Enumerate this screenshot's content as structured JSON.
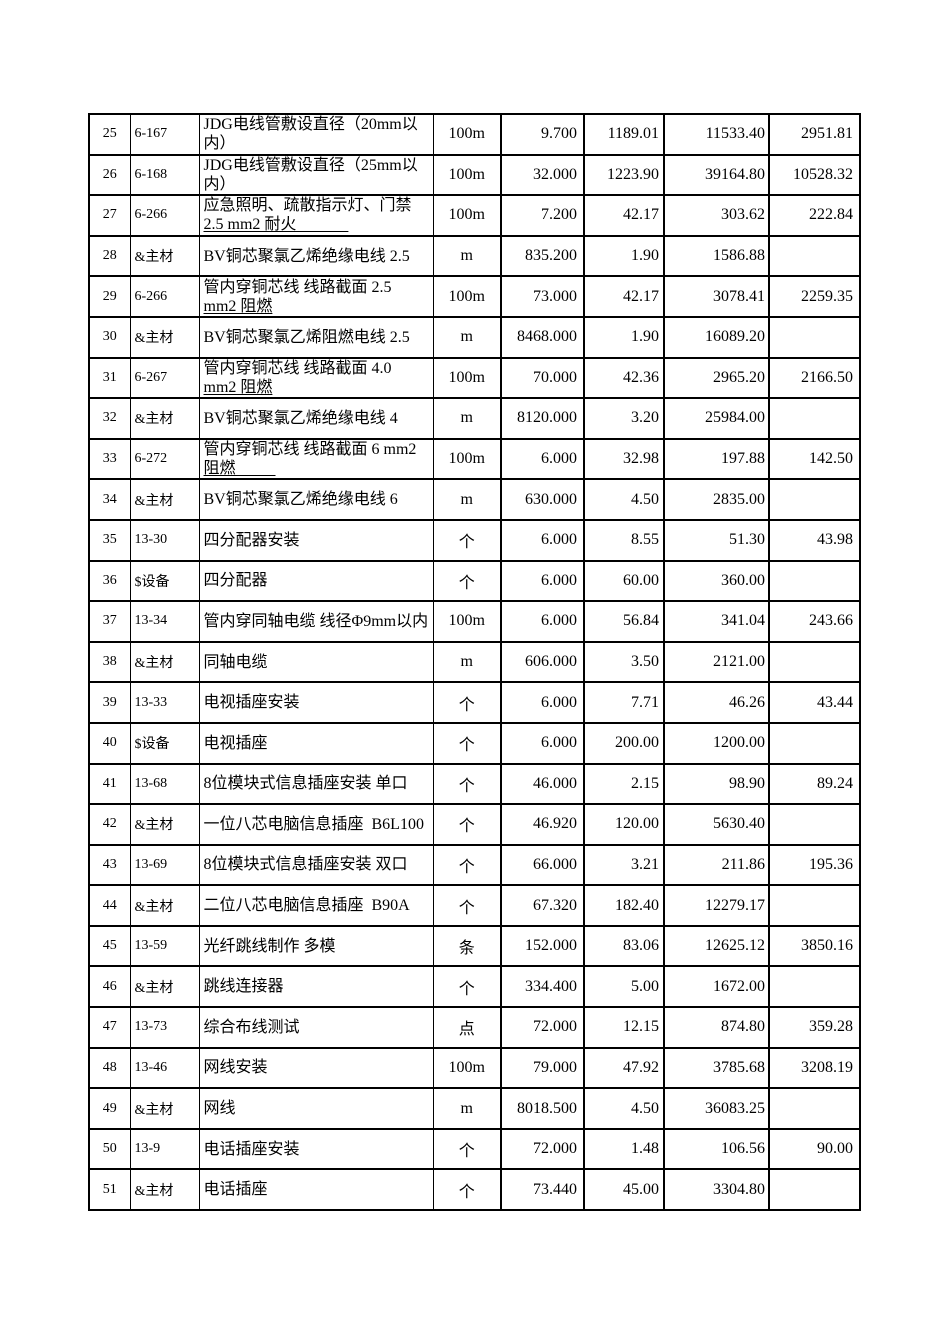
{
  "colors": {
    "background": "#ffffff",
    "border": "#000000",
    "text": "#000000"
  },
  "table": {
    "rows": [
      {
        "num": "25",
        "code": "6-167",
        "desc": [
          "JDG电线管敷设直径（20mm以",
          "内）"
        ],
        "u2": false,
        "unit": "100m",
        "qty": "9.700",
        "price": "1189.01",
        "amount": "11533.40",
        "extra": "2951.81"
      },
      {
        "num": "26",
        "code": "6-168",
        "desc": [
          "JDG电线管敷设直径（25mm以",
          "内）"
        ],
        "u2": false,
        "unit": "100m",
        "qty": "32.000",
        "price": "1223.90",
        "amount": "39164.80",
        "extra": "10528.32"
      },
      {
        "num": "27",
        "code": "6-266",
        "desc": [
          "应急照明、疏散指示灯、门禁",
          "2.5 mm2 耐火             "
        ],
        "u2": true,
        "unit": "100m",
        "qty": "7.200",
        "price": "42.17",
        "amount": "303.62",
        "extra": "222.84"
      },
      {
        "num": "28",
        "code": "&主材",
        "desc": [
          "BV铜芯聚氯乙烯绝缘电线 2.5"
        ],
        "u2": false,
        "unit": "m",
        "qty": "835.200",
        "price": "1.90",
        "amount": "1586.88",
        "extra": ""
      },
      {
        "num": "29",
        "code": "6-266",
        "desc": [
          "管内穿铜芯线 线路截面 2.5",
          "mm2 阻燃"
        ],
        "u2": true,
        "unit": "100m",
        "qty": "73.000",
        "price": "42.17",
        "amount": "3078.41",
        "extra": "2259.35"
      },
      {
        "num": "30",
        "code": "&主材",
        "desc": [
          "BV铜芯聚氯乙烯阻燃电线 2.5"
        ],
        "u2": false,
        "unit": "m",
        "qty": "8468.000",
        "price": "1.90",
        "amount": "16089.20",
        "extra": ""
      },
      {
        "num": "31",
        "code": "6-267",
        "desc": [
          "管内穿铜芯线 线路截面 4.0",
          "mm2 阻燃"
        ],
        "u2": true,
        "unit": "100m",
        "qty": "70.000",
        "price": "42.36",
        "amount": "2965.20",
        "extra": "2166.50"
      },
      {
        "num": "32",
        "code": "&主材",
        "desc": [
          "BV铜芯聚氯乙烯绝缘电线 4"
        ],
        "u2": false,
        "unit": "m",
        "qty": "8120.000",
        "price": "3.20",
        "amount": "25984.00",
        "extra": ""
      },
      {
        "num": "33",
        "code": "6-272",
        "desc": [
          "管内穿铜芯线 线路截面 6 mm2",
          "阻燃          "
        ],
        "u2": true,
        "unit": "100m",
        "qty": "6.000",
        "price": "32.98",
        "amount": "197.88",
        "extra": "142.50"
      },
      {
        "num": "34",
        "code": "&主材",
        "desc": [
          "BV铜芯聚氯乙烯绝缘电线 6"
        ],
        "u2": false,
        "unit": "m",
        "qty": "630.000",
        "price": "4.50",
        "amount": "2835.00",
        "extra": ""
      },
      {
        "num": "35",
        "code": "13-30",
        "desc": [
          "四分配器安装"
        ],
        "u2": false,
        "unit": "个",
        "qty": "6.000",
        "price": "8.55",
        "amount": "51.30",
        "extra": "43.98"
      },
      {
        "num": "36",
        "code": "$设备",
        "desc": [
          "四分配器"
        ],
        "u2": false,
        "unit": "个",
        "qty": "6.000",
        "price": "60.00",
        "amount": "360.00",
        "extra": ""
      },
      {
        "num": "37",
        "code": "13-34",
        "desc": [
          "管内穿同轴电缆 线径Φ9mm以内"
        ],
        "u2": false,
        "unit": "100m",
        "qty": "6.000",
        "price": "56.84",
        "amount": "341.04",
        "extra": "243.66"
      },
      {
        "num": "38",
        "code": "&主材",
        "desc": [
          "同轴电缆"
        ],
        "u2": false,
        "unit": "m",
        "qty": "606.000",
        "price": "3.50",
        "amount": "2121.00",
        "extra": ""
      },
      {
        "num": "39",
        "code": "13-33",
        "desc": [
          "电视插座安装"
        ],
        "u2": false,
        "unit": "个",
        "qty": "6.000",
        "price": "7.71",
        "amount": "46.26",
        "extra": "43.44"
      },
      {
        "num": "40",
        "code": "$设备",
        "desc": [
          "电视插座"
        ],
        "u2": false,
        "unit": "个",
        "qty": "6.000",
        "price": "200.00",
        "amount": "1200.00",
        "extra": ""
      },
      {
        "num": "41",
        "code": "13-68",
        "desc": [
          "8位模块式信息插座安装 单口"
        ],
        "u2": false,
        "unit": "个",
        "qty": "46.000",
        "price": "2.15",
        "amount": "98.90",
        "extra": "89.24"
      },
      {
        "num": "42",
        "code": "&主材",
        "desc": [
          "一位八芯电脑信息插座  B6L100"
        ],
        "u2": false,
        "unit": "个",
        "qty": "46.920",
        "price": "120.00",
        "amount": "5630.40",
        "extra": ""
      },
      {
        "num": "43",
        "code": "13-69",
        "desc": [
          "8位模块式信息插座安装 双口"
        ],
        "u2": false,
        "unit": "个",
        "qty": "66.000",
        "price": "3.21",
        "amount": "211.86",
        "extra": "195.36"
      },
      {
        "num": "44",
        "code": "&主材",
        "desc": [
          "二位八芯电脑信息插座  B90A"
        ],
        "u2": false,
        "unit": "个",
        "qty": "67.320",
        "price": "182.40",
        "amount": "12279.17",
        "extra": ""
      },
      {
        "num": "45",
        "code": "13-59",
        "desc": [
          "光纤跳线制作 多模"
        ],
        "u2": false,
        "unit": "条",
        "qty": "152.000",
        "price": "83.06",
        "amount": "12625.12",
        "extra": "3850.16"
      },
      {
        "num": "46",
        "code": "&主材",
        "desc": [
          "跳线连接器"
        ],
        "u2": false,
        "unit": "个",
        "qty": "334.400",
        "price": "5.00",
        "amount": "1672.00",
        "extra": ""
      },
      {
        "num": "47",
        "code": "13-73",
        "desc": [
          "综合布线测试"
        ],
        "u2": false,
        "unit": "点",
        "qty": "72.000",
        "price": "12.15",
        "amount": "874.80",
        "extra": "359.28"
      },
      {
        "num": "48",
        "code": "13-46",
        "desc": [
          "网线安装"
        ],
        "u2": false,
        "unit": "100m",
        "qty": "79.000",
        "price": "47.92",
        "amount": "3785.68",
        "extra": "3208.19"
      },
      {
        "num": "49",
        "code": "&主材",
        "desc": [
          "网线"
        ],
        "u2": false,
        "unit": "m",
        "qty": "8018.500",
        "price": "4.50",
        "amount": "36083.25",
        "extra": ""
      },
      {
        "num": "50",
        "code": "13-9",
        "desc": [
          "电话插座安装"
        ],
        "u2": false,
        "unit": "个",
        "qty": "72.000",
        "price": "1.48",
        "amount": "106.56",
        "extra": "90.00"
      },
      {
        "num": "51",
        "code": "&主材",
        "desc": [
          "电话插座"
        ],
        "u2": false,
        "unit": "个",
        "qty": "73.440",
        "price": "45.00",
        "amount": "3304.80",
        "extra": ""
      }
    ]
  }
}
